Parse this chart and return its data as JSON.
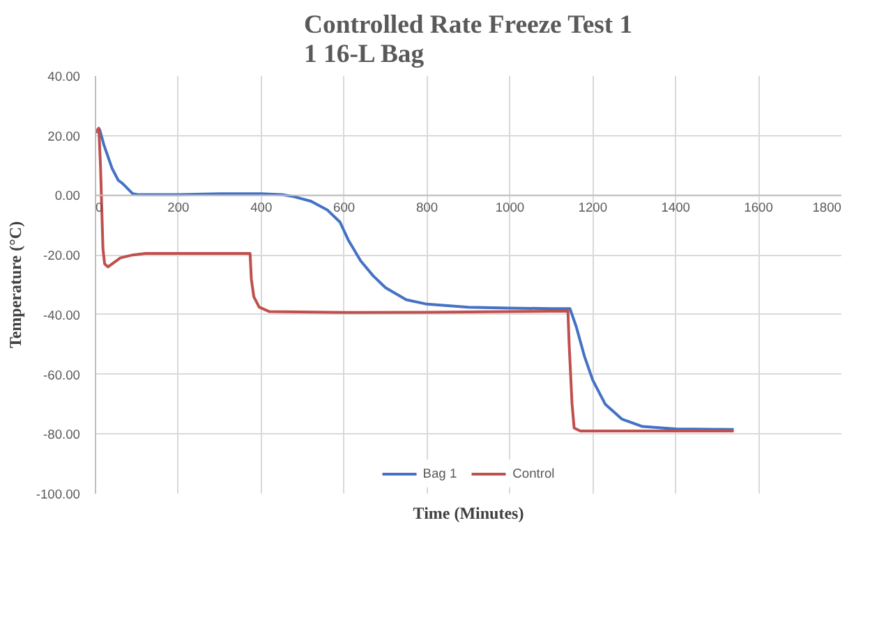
{
  "chart_data": {
    "type": "line",
    "title": "Controlled Rate Freeze Test 1\n1 16-L Bag",
    "xlabel": "Time (Minutes)",
    "ylabel": "Temperature (°C)",
    "xlim": [
      0,
      1800
    ],
    "xticks": [
      0,
      200,
      400,
      600,
      800,
      1000,
      1200,
      1400,
      1600,
      1800
    ],
    "ylim": [
      -100,
      40
    ],
    "yticks": [
      {
        "value": -100,
        "label": "-100.00"
      },
      {
        "value": -80,
        "label": "-80.00"
      },
      {
        "value": -60,
        "label": "-60.00"
      },
      {
        "value": -40,
        "label": "-40.00"
      },
      {
        "value": -20,
        "label": "-20.00"
      },
      {
        "value": 0,
        "label": "0.00"
      },
      {
        "value": 20,
        "label": "20.00"
      },
      {
        "value": 40,
        "label": "40.00"
      }
    ],
    "grid": true,
    "legend": "bottom",
    "marker": "none",
    "line_style": "solid",
    "series": [
      {
        "name": "Bag 1",
        "color": "#4472c4",
        "x": [
          0,
          10,
          20,
          40,
          55,
          65,
          90,
          100,
          200,
          300,
          400,
          450,
          480,
          520,
          560,
          590,
          610,
          640,
          670,
          700,
          750,
          800,
          900,
          1000,
          1100,
          1145,
          1160,
          1180,
          1200,
          1230,
          1270,
          1320,
          1400,
          1540
        ],
        "values": [
          21,
          22,
          17,
          9,
          5,
          4,
          0.5,
          0.3,
          0.2,
          0.5,
          0.5,
          0.2,
          -0.5,
          -2,
          -5,
          -9,
          -15,
          -22,
          -27,
          -31,
          -35,
          -36.5,
          -37.5,
          -37.8,
          -38,
          -38,
          -44,
          -54,
          -62,
          -70,
          -75,
          -77.5,
          -78.3,
          -78.5
        ]
      },
      {
        "name": "Control",
        "color": "#c0504d",
        "x": [
          0,
          8,
          12,
          18,
          22,
          30,
          45,
          60,
          90,
          120,
          373,
          376,
          382,
          395,
          420,
          600,
          800,
          1000,
          1140,
          1143,
          1150,
          1155,
          1170,
          1540
        ],
        "values": [
          21,
          22.5,
          10,
          -18,
          -23,
          -24,
          -22.5,
          -21,
          -20,
          -19.5,
          -19.5,
          -28,
          -34,
          -37.5,
          -39,
          -39.3,
          -39.2,
          -39,
          -38.8,
          -50,
          -70,
          -78,
          -79,
          -79
        ]
      }
    ]
  }
}
